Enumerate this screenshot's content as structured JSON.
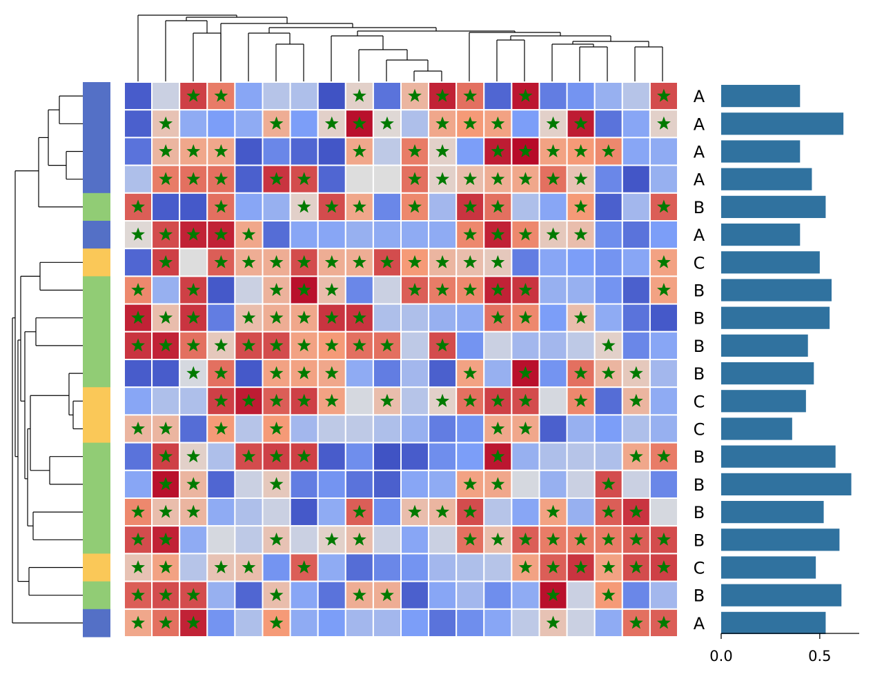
{
  "chart_data": [
    {
      "type": "heatmap",
      "title": "",
      "rows": 20,
      "cols": 20,
      "values": [
        [
          0.05,
          0.45,
          0.9,
          0.8,
          0.28,
          0.4,
          0.38,
          0.02,
          0.55,
          0.12,
          0.65,
          0.95,
          0.82,
          0.08,
          0.97,
          0.15,
          0.22,
          0.32,
          0.4,
          0.88
        ],
        [
          0.06,
          0.6,
          0.3,
          0.25,
          0.3,
          0.68,
          0.25,
          0.55,
          0.98,
          0.52,
          0.38,
          0.7,
          0.75,
          0.72,
          0.25,
          0.55,
          0.96,
          0.12,
          0.28,
          0.55
        ],
        [
          0.12,
          0.65,
          0.7,
          0.7,
          0.04,
          0.18,
          0.08,
          0.03,
          0.7,
          0.42,
          0.8,
          0.55,
          0.25,
          0.96,
          0.99,
          0.72,
          0.75,
          0.78,
          0.28,
          0.3
        ],
        [
          0.38,
          0.8,
          0.82,
          0.82,
          0.06,
          0.92,
          0.88,
          0.08,
          0.5,
          0.5,
          0.82,
          0.55,
          0.62,
          0.68,
          0.7,
          0.82,
          0.6,
          0.18,
          0.03,
          0.32
        ],
        [
          0.85,
          0.05,
          0.04,
          0.82,
          0.28,
          0.32,
          0.55,
          0.88,
          0.7,
          0.18,
          0.78,
          0.35,
          0.92,
          0.82,
          0.38,
          0.28,
          0.75,
          0.06,
          0.35,
          0.85
        ],
        [
          0.52,
          0.88,
          0.95,
          0.95,
          0.7,
          0.1,
          0.28,
          0.28,
          0.32,
          0.3,
          0.3,
          0.3,
          0.78,
          0.95,
          0.78,
          0.58,
          0.62,
          0.2,
          0.12,
          0.25
        ],
        [
          0.08,
          0.9,
          0.5,
          0.85,
          0.68,
          0.68,
          0.88,
          0.68,
          0.68,
          0.88,
          0.75,
          0.65,
          0.62,
          0.58,
          0.15,
          0.28,
          0.25,
          0.22,
          0.28,
          0.72
        ],
        [
          0.78,
          0.32,
          0.9,
          0.04,
          0.45,
          0.66,
          0.98,
          0.62,
          0.18,
          0.45,
          0.85,
          0.8,
          0.78,
          0.95,
          0.92,
          0.32,
          0.32,
          0.22,
          0.06,
          0.72
        ],
        [
          0.95,
          0.62,
          0.92,
          0.15,
          0.62,
          0.68,
          0.7,
          0.92,
          0.92,
          0.38,
          0.38,
          0.32,
          0.3,
          0.82,
          0.78,
          0.25,
          0.62,
          0.3,
          0.12,
          0.04
        ],
        [
          0.92,
          0.95,
          0.82,
          0.58,
          0.88,
          0.88,
          0.72,
          0.75,
          0.82,
          0.82,
          0.42,
          0.88,
          0.22,
          0.45,
          0.35,
          0.35,
          0.42,
          0.55,
          0.18,
          0.28
        ],
        [
          0.05,
          0.05,
          0.48,
          0.82,
          0.04,
          0.72,
          0.72,
          0.7,
          0.3,
          0.15,
          0.35,
          0.06,
          0.72,
          0.32,
          0.98,
          0.22,
          0.82,
          0.65,
          0.58,
          0.35
        ],
        [
          0.28,
          0.38,
          0.38,
          0.9,
          0.96,
          0.85,
          0.9,
          0.72,
          0.48,
          0.62,
          0.4,
          0.55,
          0.82,
          0.9,
          0.88,
          0.48,
          0.78,
          0.1,
          0.65,
          0.3
        ],
        [
          0.65,
          0.65,
          0.1,
          0.75,
          0.4,
          0.75,
          0.35,
          0.42,
          0.42,
          0.38,
          0.32,
          0.15,
          0.22,
          0.7,
          0.7,
          0.06,
          0.32,
          0.25,
          0.38,
          0.32
        ],
        [
          0.12,
          0.9,
          0.55,
          0.38,
          0.88,
          0.9,
          0.9,
          0.05,
          0.2,
          0.02,
          0.05,
          0.2,
          0.25,
          0.97,
          0.32,
          0.38,
          0.4,
          0.38,
          0.7,
          0.8
        ],
        [
          0.28,
          0.98,
          0.65,
          0.08,
          0.45,
          0.58,
          0.15,
          0.22,
          0.12,
          0.06,
          0.28,
          0.3,
          0.72,
          0.7,
          0.48,
          0.32,
          0.45,
          0.88,
          0.45,
          0.18
        ],
        [
          0.78,
          0.62,
          0.65,
          0.3,
          0.38,
          0.45,
          0.04,
          0.3,
          0.85,
          0.2,
          0.62,
          0.65,
          0.88,
          0.4,
          0.28,
          0.72,
          0.32,
          0.85,
          0.92,
          0.48
        ],
        [
          0.88,
          0.95,
          0.3,
          0.48,
          0.42,
          0.6,
          0.45,
          0.55,
          0.62,
          0.45,
          0.28,
          0.45,
          0.82,
          0.62,
          0.85,
          0.8,
          0.8,
          0.8,
          0.85,
          0.88
        ],
        [
          0.6,
          0.72,
          0.4,
          0.6,
          0.62,
          0.22,
          0.85,
          0.3,
          0.1,
          0.18,
          0.22,
          0.35,
          0.38,
          0.4,
          0.72,
          0.85,
          0.92,
          0.72,
          0.88,
          0.9
        ],
        [
          0.85,
          0.88,
          0.88,
          0.32,
          0.08,
          0.62,
          0.28,
          0.12,
          0.68,
          0.68,
          0.06,
          0.28,
          0.35,
          0.2,
          0.3,
          0.98,
          0.45,
          0.75,
          0.18,
          0.35
        ],
        [
          0.7,
          0.82,
          0.95,
          0.22,
          0.38,
          0.75,
          0.3,
          0.25,
          0.35,
          0.35,
          0.25,
          0.12,
          0.2,
          0.28,
          0.42,
          0.6,
          0.45,
          0.3,
          0.82,
          0.85
        ]
      ],
      "stars": [
        [
          0,
          0,
          1,
          1,
          0,
          0,
          0,
          0,
          1,
          0,
          1,
          1,
          1,
          0,
          1,
          0,
          0,
          0,
          0,
          1
        ],
        [
          0,
          1,
          0,
          0,
          0,
          1,
          0,
          1,
          1,
          1,
          0,
          1,
          1,
          1,
          0,
          1,
          1,
          0,
          0,
          1
        ],
        [
          0,
          1,
          1,
          1,
          0,
          0,
          0,
          0,
          1,
          0,
          1,
          1,
          0,
          1,
          1,
          1,
          1,
          1,
          0,
          0
        ],
        [
          0,
          1,
          1,
          1,
          0,
          1,
          1,
          0,
          0,
          0,
          1,
          1,
          1,
          1,
          1,
          1,
          1,
          0,
          0,
          0
        ],
        [
          1,
          0,
          0,
          1,
          0,
          0,
          1,
          1,
          1,
          0,
          1,
          0,
          1,
          1,
          0,
          0,
          1,
          0,
          0,
          1
        ],
        [
          1,
          1,
          1,
          1,
          1,
          0,
          0,
          0,
          0,
          0,
          0,
          0,
          1,
          1,
          1,
          1,
          1,
          0,
          0,
          0
        ],
        [
          0,
          1,
          0,
          1,
          1,
          1,
          1,
          1,
          1,
          1,
          1,
          1,
          1,
          1,
          0,
          0,
          0,
          0,
          0,
          1
        ],
        [
          1,
          0,
          1,
          0,
          0,
          1,
          1,
          1,
          0,
          0,
          1,
          1,
          1,
          1,
          1,
          0,
          0,
          0,
          0,
          1
        ],
        [
          1,
          1,
          1,
          0,
          1,
          1,
          1,
          1,
          1,
          0,
          0,
          0,
          0,
          1,
          1,
          0,
          1,
          0,
          0,
          0
        ],
        [
          1,
          1,
          1,
          1,
          1,
          1,
          1,
          1,
          1,
          1,
          0,
          1,
          0,
          0,
          0,
          0,
          0,
          1,
          0,
          0
        ],
        [
          0,
          0,
          1,
          1,
          0,
          1,
          1,
          1,
          0,
          0,
          0,
          0,
          1,
          0,
          1,
          0,
          1,
          1,
          1,
          0
        ],
        [
          0,
          0,
          0,
          1,
          1,
          1,
          1,
          1,
          0,
          1,
          0,
          1,
          1,
          1,
          1,
          0,
          1,
          0,
          1,
          0
        ],
        [
          1,
          1,
          0,
          1,
          0,
          1,
          0,
          0,
          0,
          0,
          0,
          0,
          0,
          1,
          1,
          0,
          0,
          0,
          0,
          0
        ],
        [
          0,
          1,
          1,
          0,
          1,
          1,
          1,
          0,
          0,
          0,
          0,
          0,
          0,
          1,
          0,
          0,
          0,
          0,
          1,
          1
        ],
        [
          0,
          1,
          1,
          0,
          0,
          1,
          0,
          0,
          0,
          0,
          0,
          0,
          1,
          1,
          0,
          0,
          0,
          1,
          0,
          0
        ],
        [
          1,
          1,
          1,
          0,
          0,
          0,
          0,
          0,
          1,
          0,
          1,
          1,
          1,
          0,
          0,
          1,
          0,
          1,
          1,
          0
        ],
        [
          1,
          1,
          0,
          0,
          0,
          1,
          0,
          1,
          1,
          0,
          0,
          0,
          1,
          1,
          1,
          1,
          1,
          1,
          1,
          1
        ],
        [
          1,
          1,
          0,
          1,
          1,
          0,
          1,
          0,
          0,
          0,
          0,
          0,
          0,
          0,
          1,
          1,
          1,
          1,
          1,
          1
        ],
        [
          1,
          1,
          1,
          0,
          0,
          1,
          0,
          0,
          1,
          1,
          0,
          0,
          0,
          0,
          0,
          1,
          0,
          1,
          0,
          0
        ],
        [
          1,
          1,
          1,
          0,
          0,
          1,
          0,
          0,
          0,
          0,
          0,
          0,
          0,
          0,
          0,
          1,
          0,
          0,
          1,
          1
        ]
      ],
      "colormap": "coolwarm",
      "grid": false
    },
    {
      "type": "bar",
      "orientation": "horizontal",
      "categories": [
        "A",
        "A",
        "A",
        "A",
        "B",
        "A",
        "C",
        "B",
        "B",
        "B",
        "B",
        "C",
        "C",
        "B",
        "B",
        "B",
        "B",
        "C",
        "B",
        "A"
      ],
      "values": [
        0.4,
        0.62,
        0.4,
        0.46,
        0.53,
        0.4,
        0.5,
        0.56,
        0.55,
        0.44,
        0.47,
        0.43,
        0.36,
        0.58,
        0.66,
        0.52,
        0.6,
        0.48,
        0.61,
        0.53
      ],
      "xlim": [
        0,
        0.7
      ],
      "xticks": [
        "0.0",
        "0.5"
      ],
      "bar_color": "#30729f"
    }
  ],
  "row_groups": [
    "A",
    "A",
    "A",
    "A",
    "B",
    "A",
    "C",
    "B",
    "B",
    "B",
    "B",
    "C",
    "C",
    "B",
    "B",
    "B",
    "B",
    "C",
    "B",
    "A"
  ],
  "group_colors": {
    "A": "#5470c6",
    "B": "#91cc75",
    "C": "#fac858"
  },
  "star_color": "#007a00"
}
